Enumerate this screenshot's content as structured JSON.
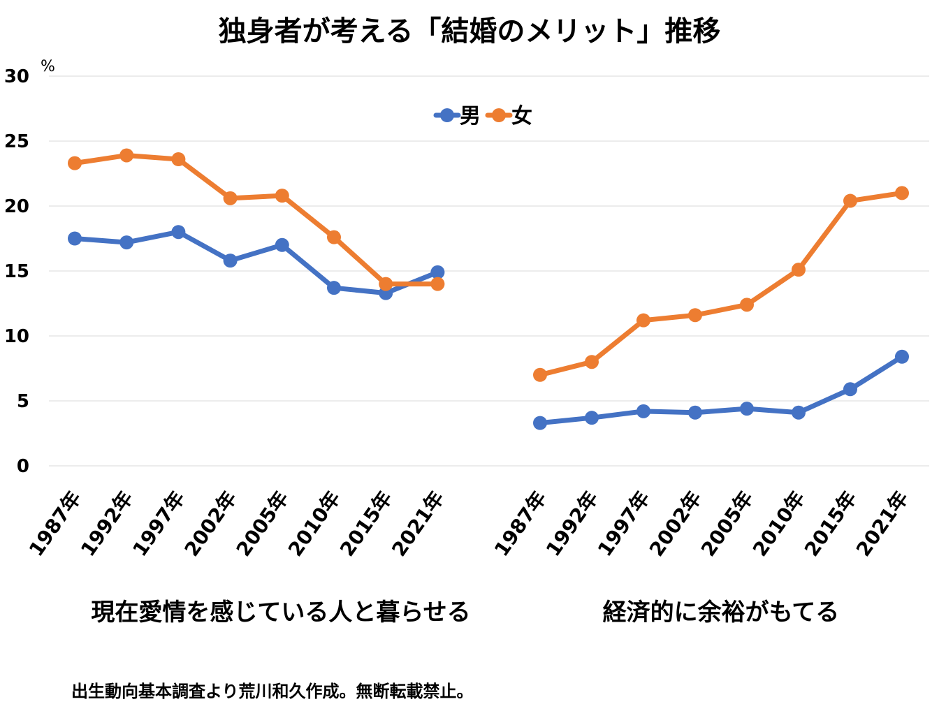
{
  "chart_data": {
    "type": "line",
    "title": "独身者が考える「結婚のメリット」推移",
    "unit": "%",
    "ylim": [
      0,
      30
    ],
    "yticks": [
      0,
      5,
      10,
      15,
      20,
      25,
      30
    ],
    "grid": true,
    "legend_position": "top-center",
    "groups": [
      {
        "label": "現在愛情を感じている人と暮らせる",
        "categories": [
          "1987年",
          "1992年",
          "1997年",
          "2002年",
          "2005年",
          "2010年",
          "2015年",
          "2021年"
        ],
        "series": [
          {
            "name": "男",
            "color": "#4472C4",
            "values": [
              17.5,
              17.2,
              18.0,
              15.8,
              17.0,
              13.7,
              13.3,
              14.9
            ]
          },
          {
            "name": "女",
            "color": "#ED7D31",
            "values": [
              23.3,
              23.9,
              23.6,
              20.6,
              20.8,
              17.6,
              14.0,
              14.0
            ]
          }
        ]
      },
      {
        "label": "経済的に余裕がもてる",
        "categories": [
          "1987年",
          "1992年",
          "1997年",
          "2002年",
          "2005年",
          "2010年",
          "2015年",
          "2021年"
        ],
        "series": [
          {
            "name": "男",
            "color": "#4472C4",
            "values": [
              3.3,
              3.7,
              4.2,
              4.1,
              4.4,
              4.1,
              5.9,
              8.4
            ]
          },
          {
            "name": "女",
            "color": "#ED7D31",
            "values": [
              7.0,
              8.0,
              11.2,
              11.6,
              12.4,
              15.1,
              20.4,
              21.0
            ]
          }
        ]
      }
    ],
    "source_note": "出生動向基本調査より荒川和久作成。無断転載禁止。"
  }
}
